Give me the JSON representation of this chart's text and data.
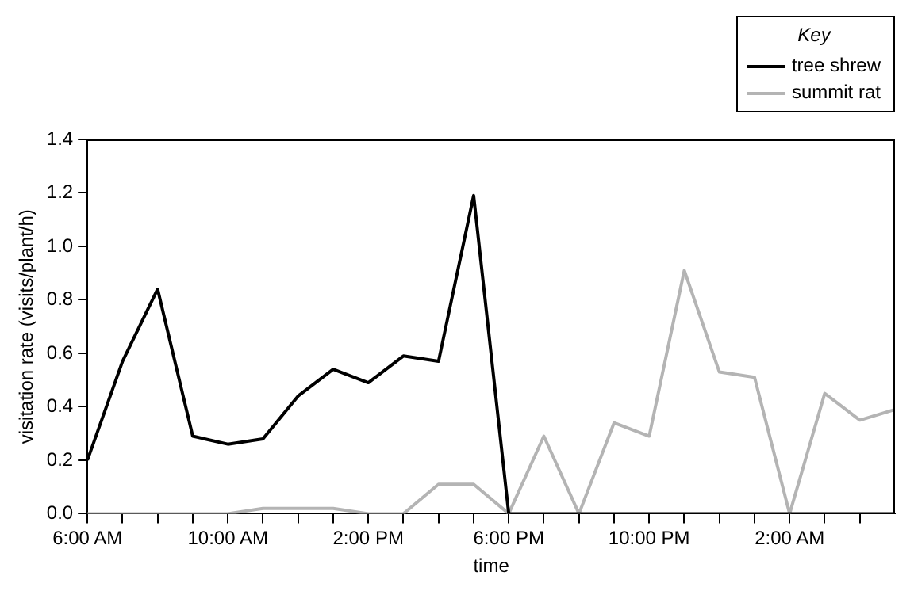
{
  "chart_data": {
    "type": "line",
    "xlabel": "time",
    "ylabel": "visitation rate (visits/plant/h)",
    "legend_title": "Key",
    "legend": "top right",
    "grid": false,
    "marker": "none",
    "line_style": "solid",
    "x": [
      "2000-01-01T06:00",
      "2000-01-01T07:00",
      "2000-01-01T08:00",
      "2000-01-01T09:00",
      "2000-01-01T10:00",
      "2000-01-01T11:00",
      "2000-01-01T12:00",
      "2000-01-01T13:00",
      "2000-01-01T14:00",
      "2000-01-01T15:00",
      "2000-01-01T16:00",
      "2000-01-01T17:00",
      "2000-01-01T18:00",
      "2000-01-01T19:00",
      "2000-01-01T20:00",
      "2000-01-01T21:00",
      "2000-01-01T22:00",
      "2000-01-01T23:00",
      "2000-01-02T00:00",
      "2000-01-02T01:00",
      "2000-01-02T02:00",
      "2000-01-02T03:00",
      "2000-01-02T04:00",
      "2000-01-02T05:00"
    ],
    "series": [
      {
        "name": "tree shrew",
        "color": "#000000",
        "values": [
          0.2,
          0.57,
          0.84,
          0.29,
          0.26,
          0.28,
          0.44,
          0.54,
          0.49,
          0.59,
          0.57,
          1.19,
          0,
          0,
          0,
          0,
          0,
          0,
          0,
          0,
          0,
          0,
          0,
          0
        ]
      },
      {
        "name": "summit rat",
        "color": "#b4b4b4",
        "values": [
          0,
          0,
          0,
          0,
          0,
          0.02,
          0.02,
          0.02,
          0,
          0,
          0.11,
          0.11,
          0,
          0.29,
          0,
          0.34,
          0.29,
          0.91,
          0.53,
          0.51,
          0,
          0.45,
          0.35,
          0.39
        ]
      }
    ],
    "xlim": [
      "2000-01-01T06:00",
      "2000-01-02T05:00"
    ],
    "xticks": [
      {
        "value": "2000-01-01T06:00",
        "label": "6:00 AM"
      },
      {
        "value": "2000-01-01T07:00",
        "label": null
      },
      {
        "value": "2000-01-01T08:00",
        "label": null
      },
      {
        "value": "2000-01-01T09:00",
        "label": null
      },
      {
        "value": "2000-01-01T10:00",
        "label": "10:00 AM"
      },
      {
        "value": "2000-01-01T11:00",
        "label": null
      },
      {
        "value": "2000-01-01T12:00",
        "label": null
      },
      {
        "value": "2000-01-01T13:00",
        "label": null
      },
      {
        "value": "2000-01-01T14:00",
        "label": "2:00 PM"
      },
      {
        "value": "2000-01-01T15:00",
        "label": null
      },
      {
        "value": "2000-01-01T16:00",
        "label": null
      },
      {
        "value": "2000-01-01T17:00",
        "label": null
      },
      {
        "value": "2000-01-01T18:00",
        "label": "6:00 PM"
      },
      {
        "value": "2000-01-01T19:00",
        "label": null
      },
      {
        "value": "2000-01-01T20:00",
        "label": null
      },
      {
        "value": "2000-01-01T21:00",
        "label": null
      },
      {
        "value": "2000-01-01T22:00",
        "label": "10:00 PM"
      },
      {
        "value": "2000-01-01T23:00",
        "label": null
      },
      {
        "value": "2000-01-02T00:00",
        "label": null
      },
      {
        "value": "2000-01-02T01:00",
        "label": null
      },
      {
        "value": "2000-01-02T02:00",
        "label": "2:00 AM"
      },
      {
        "value": "2000-01-02T03:00",
        "label": null
      },
      {
        "value": "2000-01-02T04:00",
        "label": null
      }
    ],
    "ylim": [
      0,
      1.4
    ],
    "yticks": [
      {
        "value": 0,
        "label": "0.0"
      },
      {
        "value": 0.2,
        "label": "0.2"
      },
      {
        "value": 0.4,
        "label": "0.4"
      },
      {
        "value": 0.6,
        "label": "0.6"
      },
      {
        "value": 0.8,
        "label": "0.8"
      },
      {
        "value": 1.0,
        "label": "1.0"
      },
      {
        "value": 1.2,
        "label": "1.2"
      },
      {
        "value": 1.4,
        "label": "1.4"
      }
    ]
  }
}
